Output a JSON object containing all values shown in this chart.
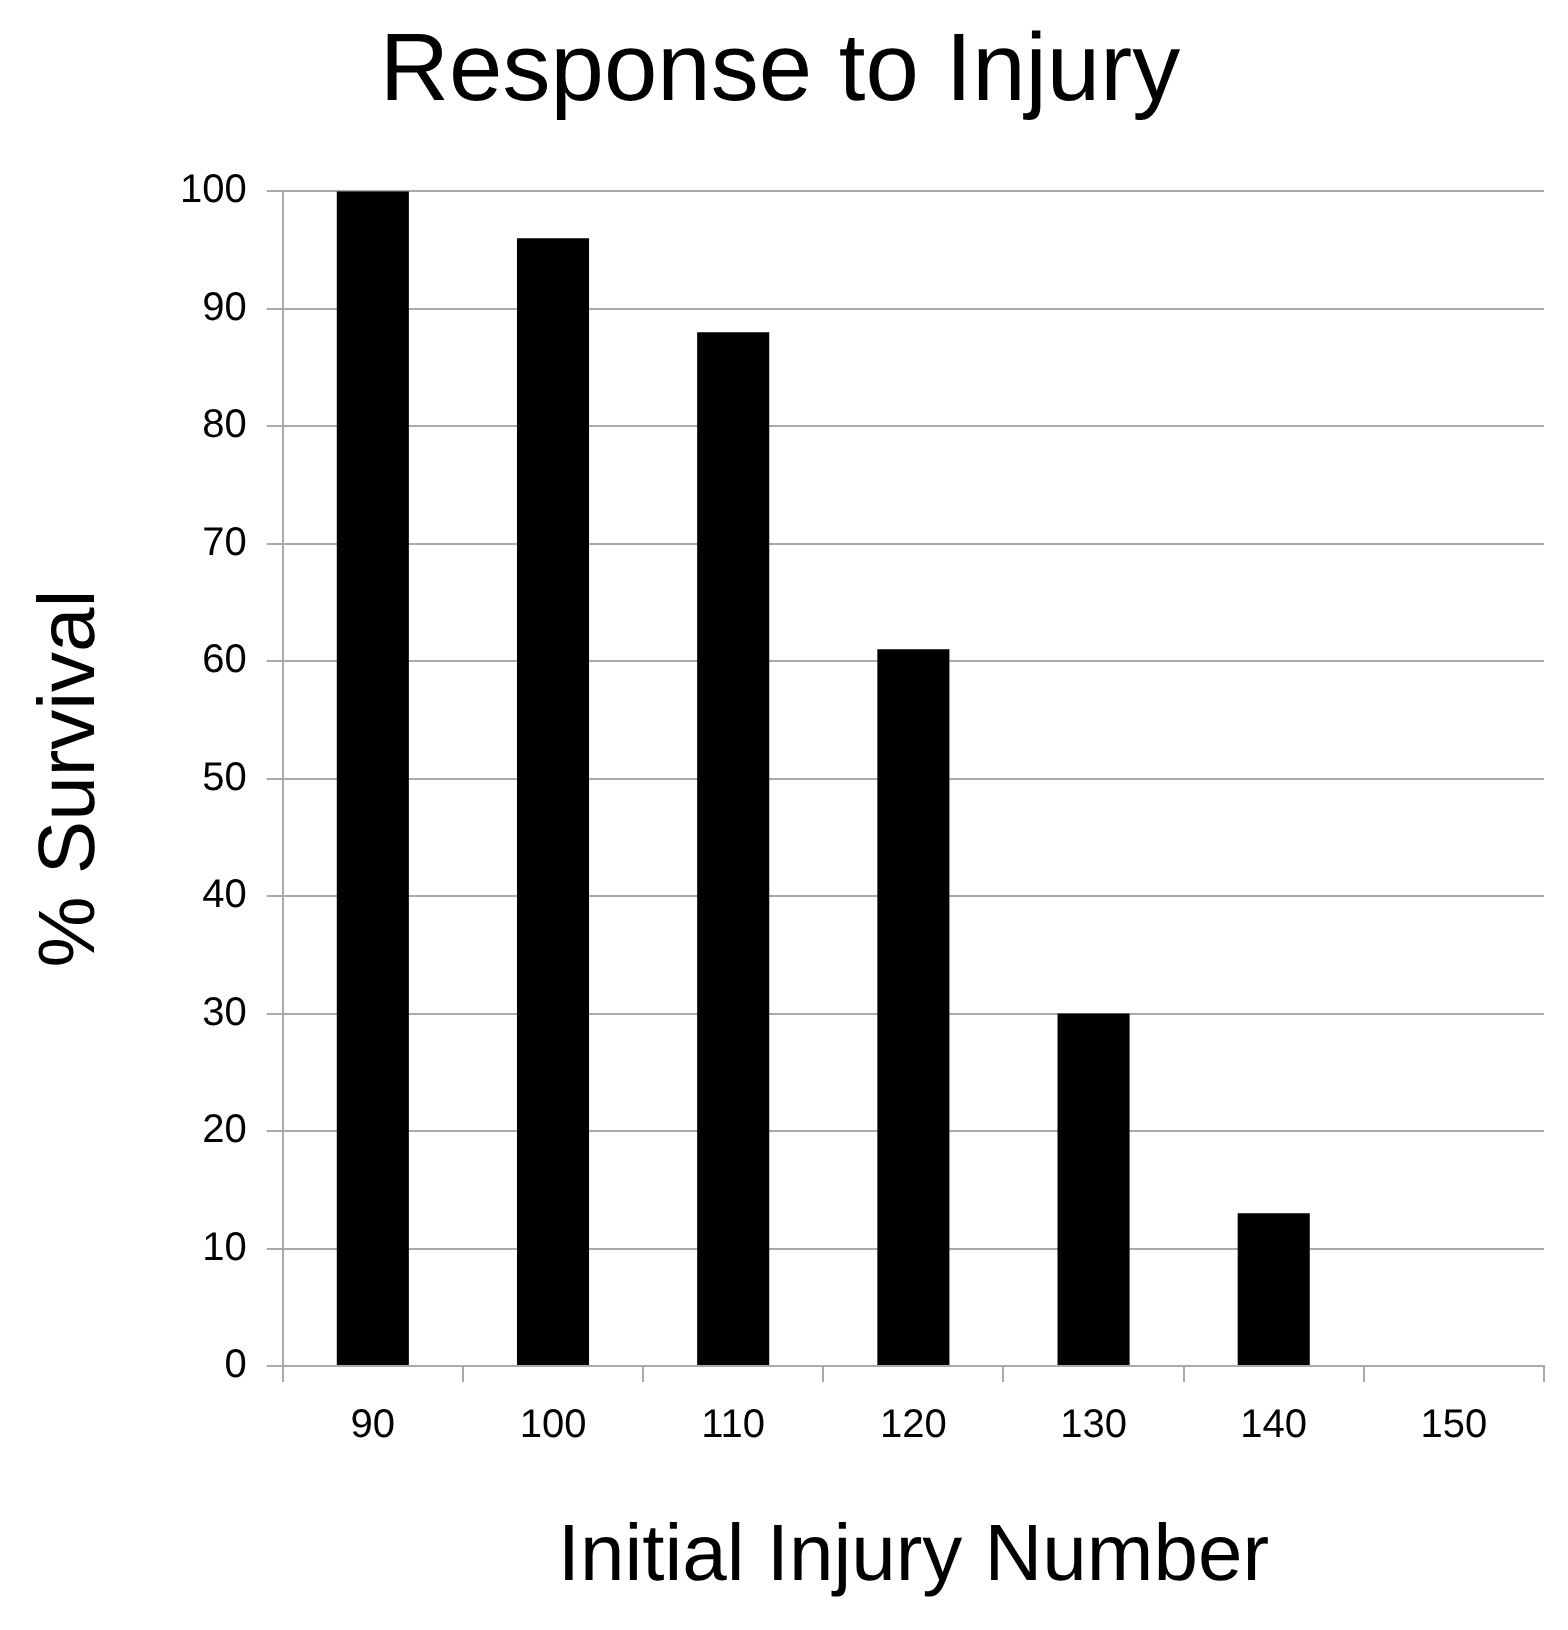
{
  "chart_data": {
    "type": "bar",
    "title": "Response to Injury",
    "xlabel": "Initial Injury Number",
    "ylabel": "% Survival",
    "categories": [
      "90",
      "100",
      "110",
      "120",
      "130",
      "140",
      "150"
    ],
    "series": [
      {
        "color": "#000000",
        "values": [
          100,
          96,
          88,
          61,
          30,
          13,
          0
        ]
      }
    ],
    "ylim": [
      0,
      100
    ],
    "yticks": [
      0,
      10,
      20,
      30,
      40,
      50,
      60,
      70,
      80,
      90,
      100
    ],
    "grid": "y",
    "legend": false
  }
}
